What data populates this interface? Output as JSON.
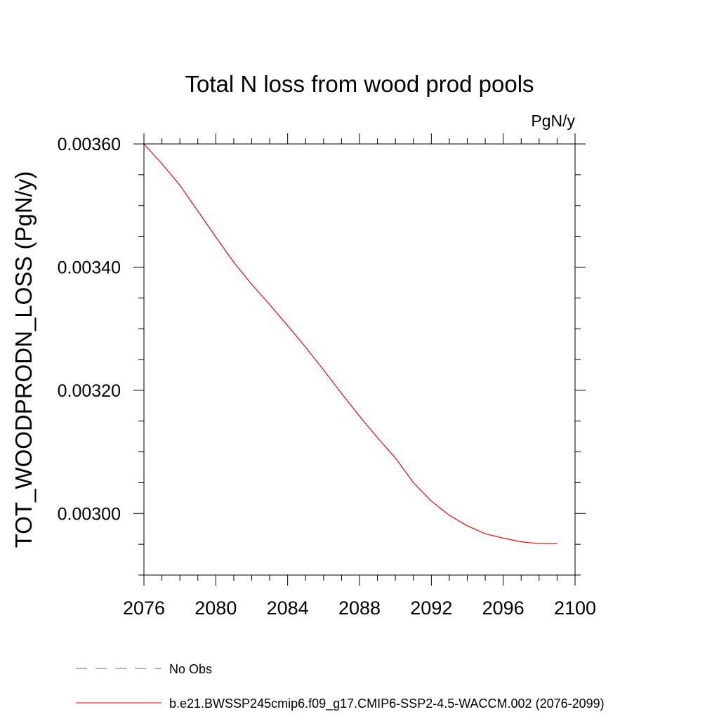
{
  "chart_data": {
    "type": "line",
    "title": "Total N loss from wood prod pools",
    "units": "PgN/y",
    "xlabel": "",
    "ylabel": "TOT_WOODPRODN_LOSS  (PgN/y)",
    "xlim": [
      2076,
      2100
    ],
    "ylim": [
      0.0029,
      0.0036
    ],
    "x_ticks": [
      2076,
      2080,
      2084,
      2088,
      2092,
      2096,
      2100
    ],
    "x_tick_labels": [
      "2076",
      "2080",
      "2084",
      "2088",
      "2092",
      "2096",
      "2100"
    ],
    "y_ticks": [
      0.003,
      0.0032,
      0.0034,
      0.0036
    ],
    "y_tick_labels": [
      "0.00300",
      "0.00320",
      "0.00340",
      "0.00360"
    ],
    "grid": false,
    "legend_placement": "bottom",
    "series": [
      {
        "name": "No Obs",
        "color": "#6a5acd",
        "dash": "dashed",
        "x": [],
        "y": []
      },
      {
        "name": "b.e21.BWSSP245cmip6.f09_g17.CMIP6-SSP2-4.5-WACCM.002 (2076-2099)",
        "color": "#ff0000",
        "dash": "solid",
        "x": [
          2076,
          2077,
          2078,
          2079,
          2080,
          2081,
          2082,
          2083,
          2084,
          2085,
          2086,
          2087,
          2088,
          2089,
          2090,
          2091,
          2092,
          2093,
          2094,
          2095,
          2096,
          2097,
          2098,
          2099
        ],
        "y": [
          0.0036,
          0.003568,
          0.003533,
          0.003491,
          0.003449,
          0.003408,
          0.003372,
          0.003339,
          0.003305,
          0.00327,
          0.003233,
          0.003195,
          0.003158,
          0.003123,
          0.00309,
          0.00305,
          0.00302,
          0.002997,
          0.00298,
          0.002967,
          0.00296,
          0.002954,
          0.002951,
          0.002951
        ]
      }
    ]
  }
}
